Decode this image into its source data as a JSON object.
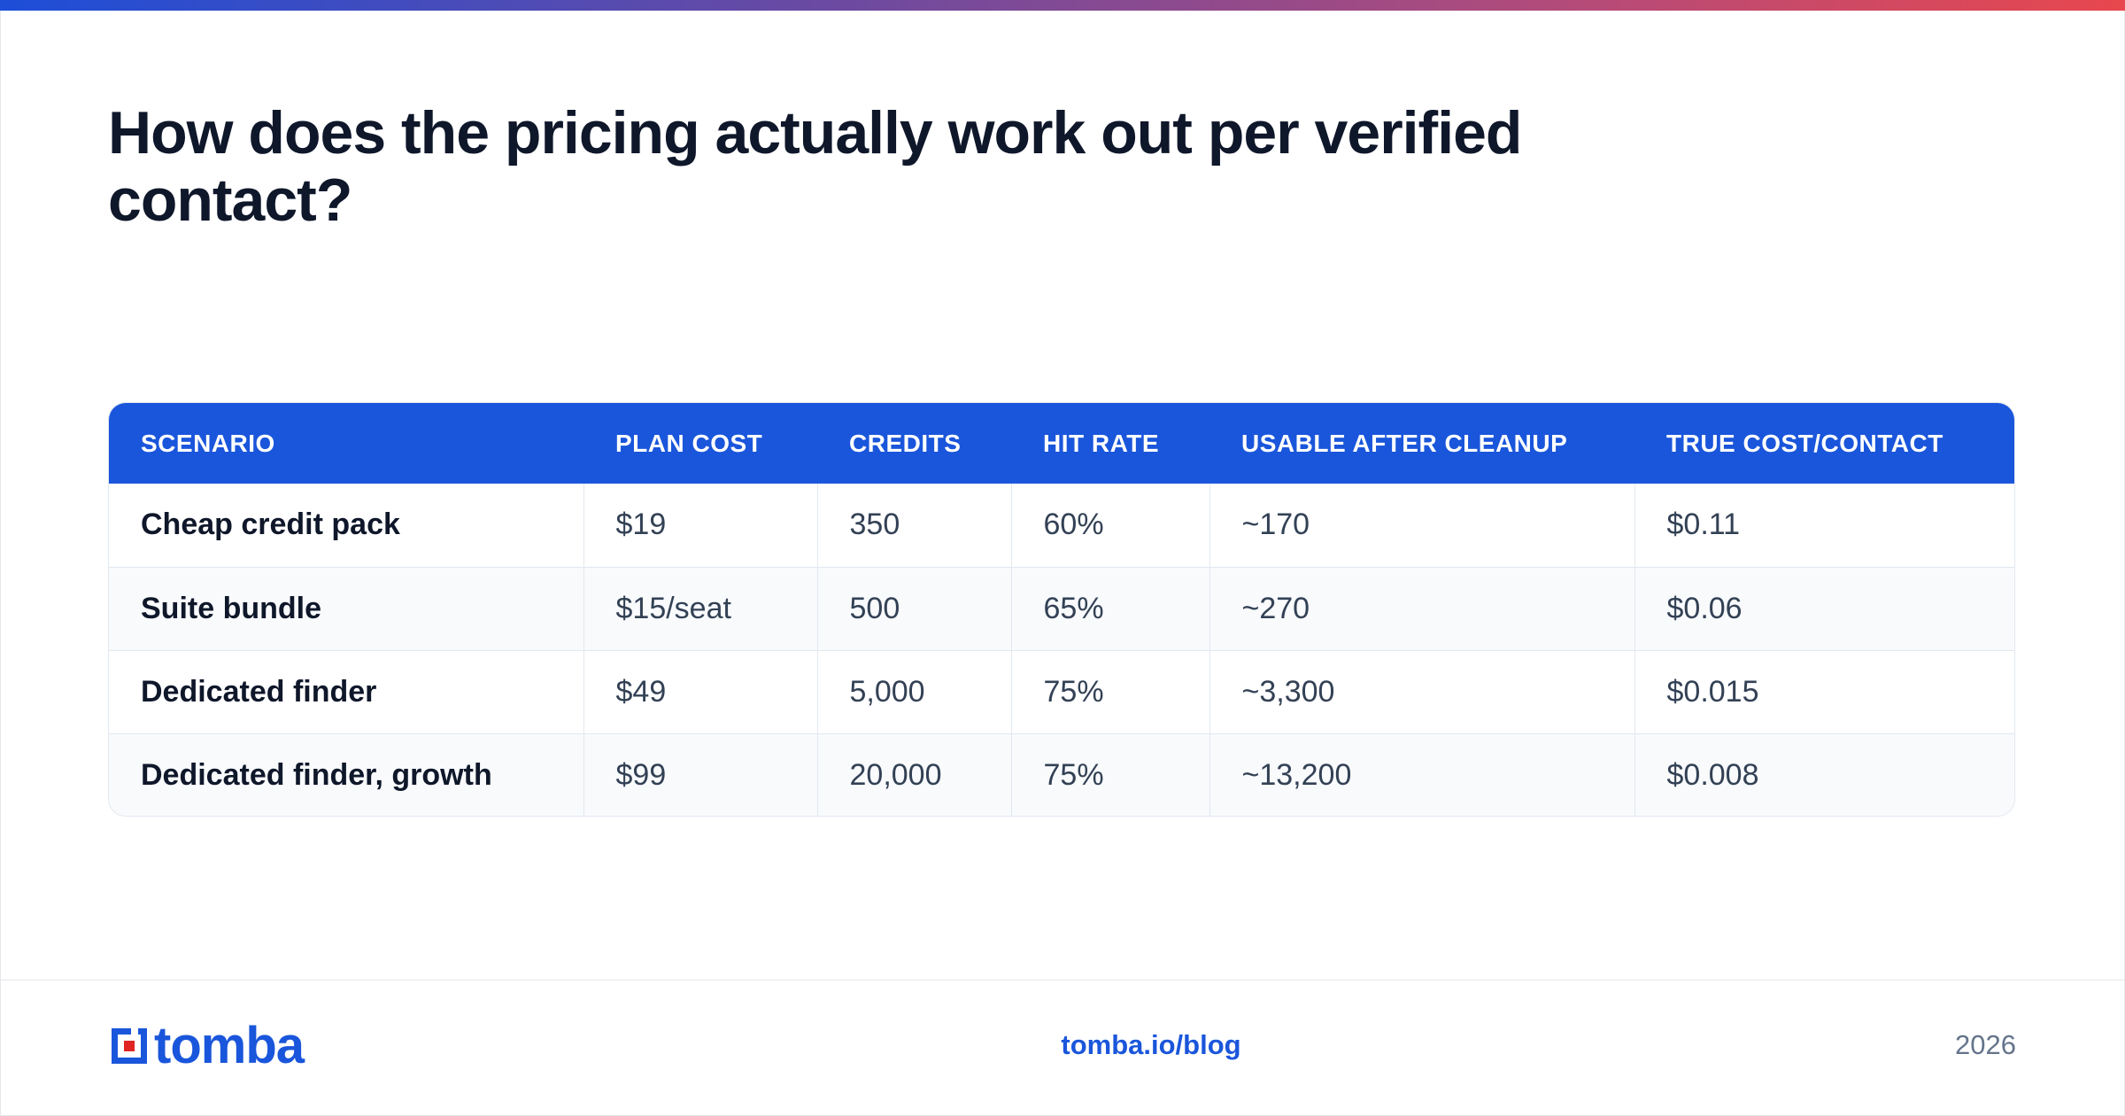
{
  "colors": {
    "accent": "#1a56db",
    "logo_red": "#e02424",
    "text_dark": "#0f172a",
    "text_muted": "#64748b"
  },
  "title": "How does the pricing actually work out per verified contact?",
  "table": {
    "headers": [
      "SCENARIO",
      "PLAN COST",
      "CREDITS",
      "HIT RATE",
      "USABLE AFTER CLEANUP",
      "TRUE COST/CONTACT"
    ],
    "rows": [
      [
        "Cheap credit pack",
        "$19",
        "350",
        "60%",
        "~170",
        "$0.11"
      ],
      [
        "Suite bundle",
        "$15/seat",
        "500",
        "65%",
        "~270",
        "$0.06"
      ],
      [
        "Dedicated finder",
        "$49",
        "5,000",
        "75%",
        "~3,300",
        "$0.015"
      ],
      [
        "Dedicated finder, growth",
        "$99",
        "20,000",
        "75%",
        "~13,200",
        "$0.008"
      ]
    ]
  },
  "footer": {
    "logo_icon": "tomba-logo-icon",
    "logo_text": "tomba",
    "link": "tomba.io/blog",
    "year": "2026"
  }
}
